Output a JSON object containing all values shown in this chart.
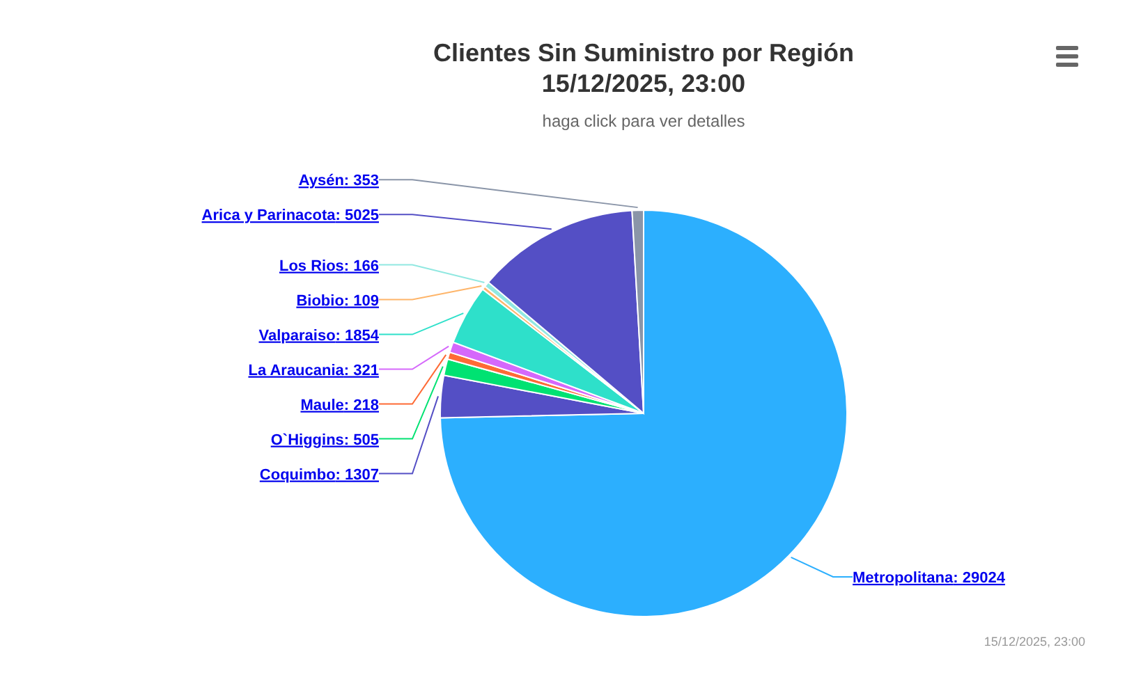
{
  "chart_data": {
    "type": "pie",
    "title": "Clientes Sin Suministro por Región\n15/12/2025, 23:00",
    "subtitle": "haga click para ver detalles",
    "categories": [
      "Metropolitana",
      "Coquimbo",
      "O`Higgins",
      "Maule",
      "La Araucania",
      "Valparaiso",
      "Biobio",
      "Los Rios",
      "Arica y Parinacota",
      "Aysén"
    ],
    "values": [
      29024,
      1307,
      505,
      218,
      321,
      1854,
      109,
      166,
      5025,
      353
    ],
    "value_labels": [
      ": 29024",
      ": 1307",
      ": 505",
      ": 218",
      ": 321",
      ": 1854",
      ": 109",
      ": 166",
      ": 5025",
      ": 353"
    ],
    "colors": [
      "#2caffe",
      "#544fc5",
      "#00e272",
      "#fe6a35",
      "#d568fb",
      "#2ee0ca",
      "#feb56a",
      "#91e8e1",
      "#544fc5",
      "#8a95a8"
    ],
    "annotations": [
      "15/12/2025, 23:00"
    ]
  }
}
